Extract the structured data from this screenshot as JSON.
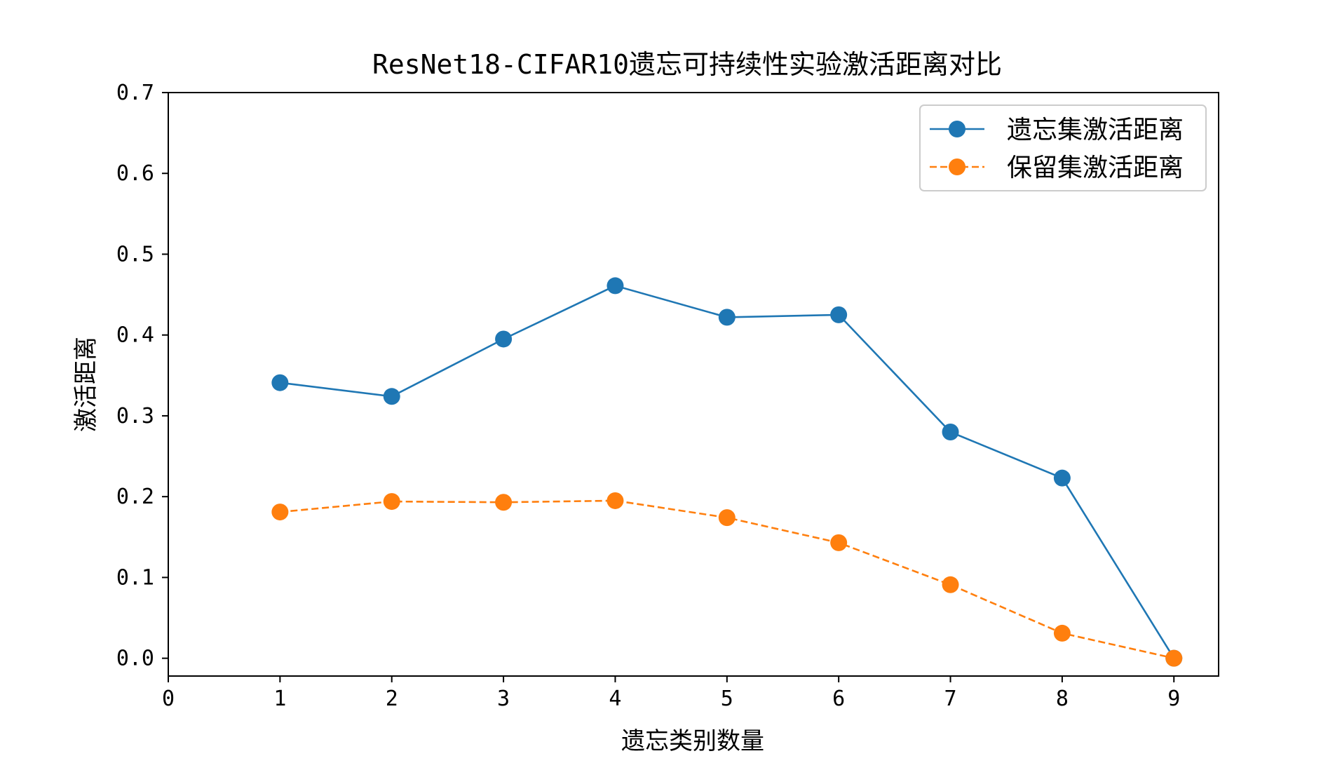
{
  "chart_data": {
    "type": "line",
    "title": "ResNet18-CIFAR10遗忘可持续性实验激活距离对比",
    "xlabel": "遗忘类别数量",
    "ylabel": "激活距离",
    "xlim": [
      0,
      9.4
    ],
    "ylim": [
      -0.022,
      0.7
    ],
    "xticks": [
      0,
      1,
      2,
      3,
      4,
      5,
      6,
      7,
      8,
      9
    ],
    "yticks": [
      0.0,
      0.1,
      0.2,
      0.3,
      0.4,
      0.5,
      0.6,
      0.7
    ],
    "ytick_labels": [
      "0.0",
      "0.1",
      "0.2",
      "0.3",
      "0.4",
      "0.5",
      "0.6",
      "0.7"
    ],
    "grid": false,
    "legend_position": "top-right",
    "x": [
      1,
      2,
      3,
      4,
      5,
      6,
      7,
      8,
      9
    ],
    "series": [
      {
        "name": "遗忘集激活距离",
        "color": "#1f77b4",
        "line_style": "solid",
        "values": [
          0.341,
          0.324,
          0.395,
          0.461,
          0.422,
          0.425,
          0.28,
          0.223,
          0.0
        ]
      },
      {
        "name": "保留集激活距离",
        "color": "#ff7f0e",
        "line_style": "dashed",
        "values": [
          0.181,
          0.194,
          0.193,
          0.195,
          0.174,
          0.143,
          0.091,
          0.031,
          0.0
        ]
      }
    ]
  }
}
